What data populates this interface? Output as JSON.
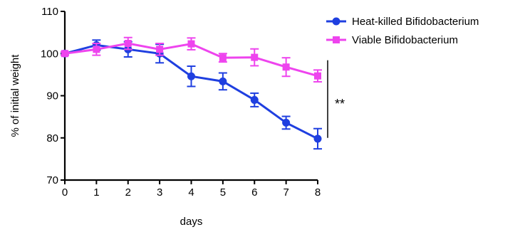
{
  "chart_data": {
    "type": "line",
    "x": [
      0,
      1,
      2,
      3,
      4,
      5,
      6,
      7,
      8
    ],
    "xlabel": "days",
    "ylabel": "% of initial weight",
    "xlim": [
      0,
      8
    ],
    "ylim": [
      70,
      110
    ],
    "x_ticks": [
      "0",
      "1",
      "2",
      "3",
      "4",
      "5",
      "6",
      "7",
      "8"
    ],
    "y_ticks": [
      "70",
      "80",
      "90",
      "100",
      "110"
    ],
    "grid": false,
    "legend_position": "top-right",
    "series": [
      {
        "name": "Heat-killed Bifidobacterium",
        "color": "#1f3fe0",
        "marker": "circle",
        "values": [
          100,
          102,
          101,
          100,
          94.6,
          93.4,
          89,
          83.6,
          79.8
        ],
        "error": [
          0.4,
          1.2,
          1.8,
          2.2,
          2.4,
          2.0,
          1.6,
          1.5,
          2.4
        ]
      },
      {
        "name": "Viable Bifidobacterium",
        "color": "#ee44ee",
        "marker": "square",
        "values": [
          100,
          101,
          102.4,
          101,
          102.3,
          99,
          99.1,
          96.8,
          94.7
        ],
        "error": [
          0.4,
          1.4,
          1.4,
          1.4,
          1.4,
          1.0,
          2.0,
          2.2,
          1.4
        ]
      }
    ],
    "annotation": {
      "text": "**",
      "from_y": 80,
      "to_y": 94.7
    }
  }
}
